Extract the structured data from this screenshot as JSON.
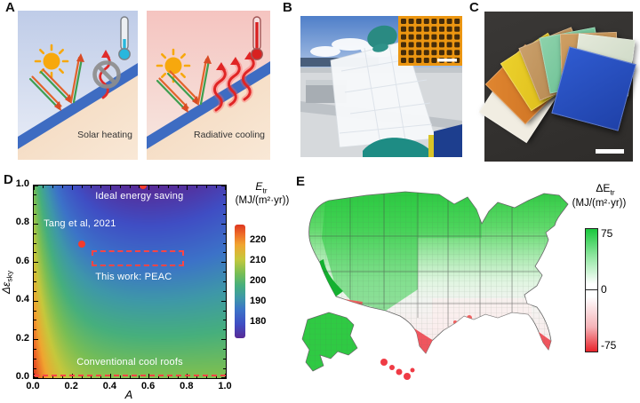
{
  "figure": {
    "panel_labels": {
      "a": "A",
      "b": "B",
      "c": "C",
      "d": "D",
      "e": "E"
    }
  },
  "panel_a": {
    "left_caption": "Solar heating",
    "right_caption": "Radiative cooling",
    "icons": [
      "sun-icon",
      "thermometer-cold-icon",
      "no-emission-icon",
      "sunlight-arrows-icon",
      "thermal-emission-waves-icon",
      "thermometer-hot-icon",
      "roof-surface"
    ],
    "colors": {
      "roof": "#3e6cc2",
      "cold_sky": "#c3cfe9",
      "hot_sky": "#f5c6c2",
      "ground": "#f4dcc2",
      "sun": "#f7a80d",
      "emission": "#e02525"
    }
  },
  "panel_b": {
    "scene": "hand in teal gloves holding white metafilm sheet on rooftop under blue sky",
    "inset": "optical micrograph, orange film with dark square array",
    "scale_bar": "white"
  },
  "panel_c": {
    "scene": "fan of colored coating samples on dark background",
    "samples": [
      "white",
      "orange",
      "yellow",
      "tan",
      "mint green",
      "copper",
      "pale green",
      "blue"
    ],
    "scale_bar": "white"
  },
  "chart_data": [
    {
      "id": "panel-d",
      "type": "heatmap",
      "xlabel": "A",
      "ylabel": {
        "main": "Δε",
        "sub": "sky"
      },
      "xlim": [
        0,
        1
      ],
      "ylim": [
        0,
        1
      ],
      "xticks": [
        0.0,
        0.2,
        0.4,
        0.6,
        0.8,
        1.0
      ],
      "yticks": [
        0.0,
        0.2,
        0.4,
        0.6,
        0.8,
        1.0
      ],
      "grid": false,
      "colorbar": {
        "title_main": "E",
        "title_sub": "tr",
        "units": "(MJ/(m²·yr))",
        "range": [
          172,
          228
        ],
        "ticks": [
          220,
          210,
          200,
          190,
          180
        ]
      },
      "field": {
        "formula": "Etr = 205 + 23*exp(-A/0.12) - dEsky*(33 - 24*(A-0.57)^2)",
        "base_offset": 205,
        "base_amp": 23,
        "base_decay": 0.12,
        "dip_max": 33,
        "dip_curv": 24,
        "dip_center": 0.57
      },
      "colormap": [
        [
          172,
          "#582a96"
        ],
        [
          179,
          "#3f4ec4"
        ],
        [
          186,
          "#3c73c8"
        ],
        [
          192,
          "#3e98a8"
        ],
        [
          198,
          "#46af7d"
        ],
        [
          204,
          "#78be55"
        ],
        [
          211,
          "#c6c83c"
        ],
        [
          218,
          "#f0a530"
        ],
        [
          223,
          "#ee6e28"
        ],
        [
          228,
          "#de3720"
        ]
      ],
      "annotations": [
        {
          "text": "Ideal energy saving",
          "x": 0.55,
          "y": 0.945
        },
        {
          "text": "Tang et al, 2021",
          "x": 0.24,
          "y": 0.8
        },
        {
          "text": "This work: PEAC",
          "x": 0.52,
          "y": 0.525
        },
        {
          "text": "Conventional cool roofs",
          "x": 0.5,
          "y": 0.085
        }
      ],
      "markers": [
        {
          "x": 0.57,
          "y": 1.0,
          "label": "ideal point"
        },
        {
          "x": 0.25,
          "y": 0.695,
          "label": "Tang et al, 2021"
        }
      ],
      "dashed_box": {
        "x0": 0.3,
        "x1": 0.765,
        "y0": 0.6,
        "y1": 0.665,
        "label": "This work: PEAC"
      },
      "dashed_line_y": 0.012,
      "accent": "#ff4545"
    },
    {
      "id": "panel-e",
      "type": "choropleth",
      "region": "United States, county level",
      "colorbar": {
        "title_main": "ΔE",
        "title_sub": "tr",
        "units": "(MJ/(m²·yr))",
        "range": [
          -75,
          75
        ],
        "ticks": [
          75,
          0,
          -75
        ],
        "positive_color": "#18c73c",
        "zero_color": "#ffffff",
        "negative_color": "#e8232a"
      },
      "pattern": "north and west green (positive), central-south near zero (white), southern Texas / south Florida / southern Arizona / Gulf spots / Hawaii red (negative), Alaska and California coast strong green"
    }
  ]
}
